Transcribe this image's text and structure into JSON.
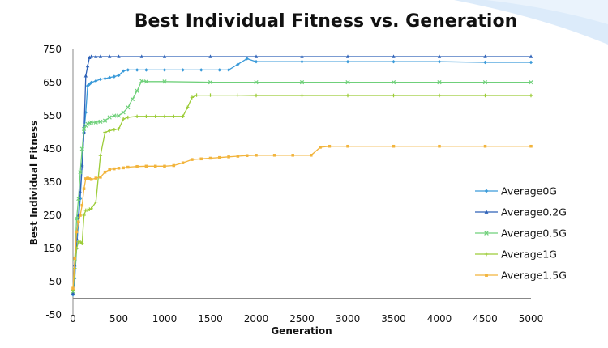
{
  "chart_data": {
    "type": "line",
    "title": "Best Individual Fitness vs. Generation",
    "xlabel": "Generation",
    "ylabel": "Best Individual Fitness",
    "xlim": [
      0,
      5000
    ],
    "ylim": [
      -50,
      750
    ],
    "xticks": [
      0,
      500,
      1000,
      1500,
      2000,
      2500,
      3000,
      3500,
      4000,
      4500,
      5000
    ],
    "yticks": [
      -50,
      50,
      150,
      250,
      350,
      450,
      550,
      650,
      750
    ],
    "grid": false,
    "legend_position": "right",
    "series": [
      {
        "name": "Average0G",
        "color": "#3a9ad9",
        "marker": "diamond",
        "x": [
          0,
          20,
          40,
          60,
          80,
          100,
          120,
          140,
          160,
          180,
          200,
          250,
          300,
          350,
          400,
          450,
          500,
          550,
          600,
          700,
          800,
          1000,
          1200,
          1400,
          1600,
          1700,
          1800,
          1900,
          2000,
          2500,
          3000,
          3500,
          4000,
          4500,
          5000
        ],
        "y": [
          10,
          60,
          150,
          230,
          300,
          400,
          500,
          560,
          640,
          645,
          650,
          655,
          660,
          662,
          665,
          668,
          672,
          685,
          688,
          688,
          688,
          688,
          688,
          688,
          688,
          688,
          705,
          722,
          713,
          713,
          713,
          713,
          713,
          711,
          711
        ]
      },
      {
        "name": "Average0.2G",
        "color": "#2e62b8",
        "marker": "triangle",
        "x": [
          0,
          20,
          40,
          60,
          80,
          100,
          120,
          140,
          160,
          180,
          200,
          250,
          300,
          400,
          500,
          750,
          1000,
          1500,
          2000,
          2500,
          3000,
          3500,
          4000,
          4500,
          5000
        ],
        "y": [
          15,
          100,
          180,
          250,
          320,
          400,
          500,
          670,
          700,
          725,
          728,
          728,
          728,
          728,
          728,
          728,
          728,
          728,
          728,
          728,
          728,
          728,
          728,
          728,
          728
        ]
      },
      {
        "name": "Average0.5G",
        "color": "#6fd07a",
        "marker": "x",
        "x": [
          0,
          20,
          40,
          60,
          80,
          100,
          120,
          140,
          160,
          180,
          200,
          250,
          300,
          350,
          400,
          450,
          500,
          550,
          600,
          650,
          700,
          750,
          800,
          1000,
          1500,
          2000,
          2500,
          3000,
          3500,
          4000,
          4500,
          5000
        ],
        "y": [
          20,
          120,
          240,
          300,
          380,
          450,
          510,
          520,
          525,
          528,
          530,
          530,
          532,
          535,
          545,
          550,
          550,
          560,
          575,
          600,
          625,
          655,
          653,
          653,
          651,
          651,
          651,
          651,
          651,
          651,
          651,
          651
        ]
      },
      {
        "name": "Average1G",
        "color": "#9ccc38",
        "marker": "plus",
        "x": [
          0,
          20,
          40,
          60,
          80,
          100,
          120,
          140,
          160,
          180,
          200,
          250,
          300,
          350,
          400,
          450,
          500,
          550,
          600,
          700,
          800,
          900,
          1000,
          1100,
          1200,
          1250,
          1300,
          1350,
          1500,
          1800,
          2000,
          2500,
          3000,
          3500,
          4000,
          4500,
          5000
        ],
        "y": [
          25,
          90,
          150,
          170,
          170,
          165,
          250,
          265,
          265,
          268,
          270,
          290,
          430,
          500,
          505,
          508,
          510,
          540,
          545,
          548,
          548,
          548,
          548,
          548,
          548,
          575,
          605,
          612,
          612,
          612,
          611,
          611,
          611,
          611,
          611,
          611,
          611
        ]
      },
      {
        "name": "Average1.5G",
        "color": "#f2b43c",
        "marker": "square",
        "x": [
          0,
          20,
          40,
          60,
          80,
          100,
          120,
          140,
          160,
          180,
          200,
          250,
          300,
          350,
          400,
          450,
          500,
          550,
          600,
          700,
          800,
          900,
          1000,
          1100,
          1200,
          1300,
          1400,
          1500,
          1600,
          1700,
          1800,
          1900,
          2000,
          2200,
          2400,
          2600,
          2700,
          2800,
          3000,
          3500,
          4000,
          4500,
          5000
        ],
        "y": [
          30,
          120,
          200,
          230,
          250,
          280,
          330,
          360,
          362,
          360,
          358,
          362,
          365,
          380,
          388,
          390,
          392,
          393,
          395,
          397,
          398,
          398,
          398,
          400,
          408,
          418,
          420,
          422,
          424,
          426,
          428,
          430,
          431,
          431,
          431,
          431,
          455,
          458,
          458,
          458,
          458,
          458,
          458
        ]
      }
    ]
  }
}
